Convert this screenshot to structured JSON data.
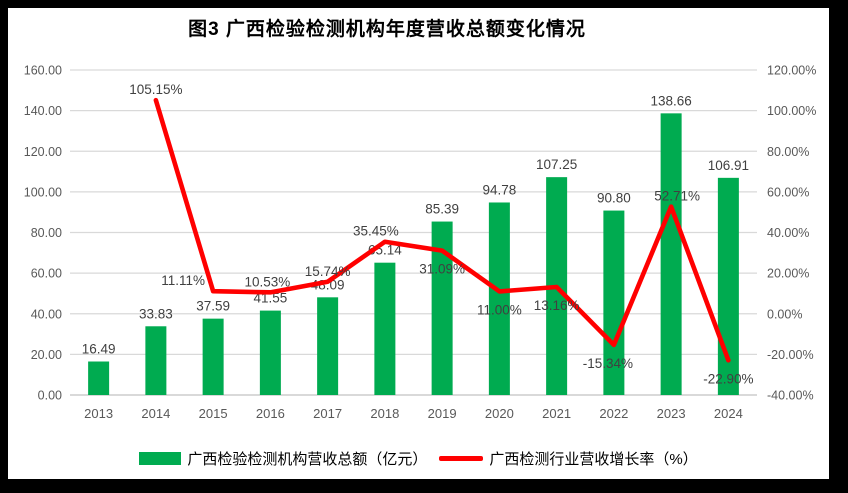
{
  "window": {
    "background": "#000000",
    "chart_background": "#ffffff"
  },
  "chart_data": {
    "type": "bar+line combo",
    "title": "图3 广西检验检测机构年度营收总额变化情况",
    "categories": [
      "2013",
      "2014",
      "2015",
      "2016",
      "2017",
      "2018",
      "2019",
      "2020",
      "2021",
      "2022",
      "2023",
      "2024"
    ],
    "series": [
      {
        "name": "广西检验检测机构营收总额（亿元）",
        "type": "bar",
        "axis": "left",
        "color": "#00AB50",
        "values": [
          16.49,
          33.83,
          37.59,
          41.55,
          48.09,
          65.14,
          85.39,
          94.78,
          107.25,
          90.8,
          138.66,
          106.91
        ],
        "labels": [
          "16.49",
          "33.83",
          "37.59",
          "41.55",
          "48.09",
          "65.14",
          "85.39",
          "94.78",
          "107.25",
          "90.80",
          "138.66",
          "106.91"
        ]
      },
      {
        "name": "广西检测行业营收增长率（%）",
        "type": "line",
        "axis": "right",
        "color": "#FF0000",
        "values": [
          null,
          105.15,
          11.11,
          10.53,
          15.74,
          35.45,
          31.09,
          11.0,
          13.16,
          -15.34,
          52.71,
          -22.9
        ],
        "labels": [
          null,
          "105.15%",
          "11.11%",
          "10.53%",
          "15.74%",
          "35.45%",
          "31.09%",
          "11.00%",
          "13.16%",
          "-15.34%",
          "52.71%",
          "-22.90%"
        ],
        "label_sides": [
          null,
          "above",
          "above",
          "above",
          "above",
          "above",
          "below",
          "below",
          "below",
          "below",
          "above",
          "below"
        ],
        "label_dx": [
          null,
          0,
          -30,
          -3,
          0,
          -9,
          0,
          0,
          0,
          -6,
          6,
          0
        ]
      }
    ],
    "left_axis": {
      "min": 0,
      "max": 160,
      "step": 20,
      "ticks": [
        "160.00",
        "140.00",
        "120.00",
        "100.00",
        "80.00",
        "60.00",
        "40.00",
        "20.00",
        "0.00"
      ]
    },
    "right_axis": {
      "min": -40,
      "max": 120,
      "step": 20,
      "ticks": [
        "120.00%",
        "100.00%",
        "80.00%",
        "60.00%",
        "40.00%",
        "20.00%",
        "0.00%",
        "-20.00%",
        "-40.00%"
      ]
    },
    "grid": true,
    "legend_position": "bottom",
    "colors": {
      "gridline": "#D9D9D9",
      "axis_line": "#D6D6D6",
      "tick_label": "#595959",
      "data_label": "#404040",
      "title": "#000000"
    }
  }
}
